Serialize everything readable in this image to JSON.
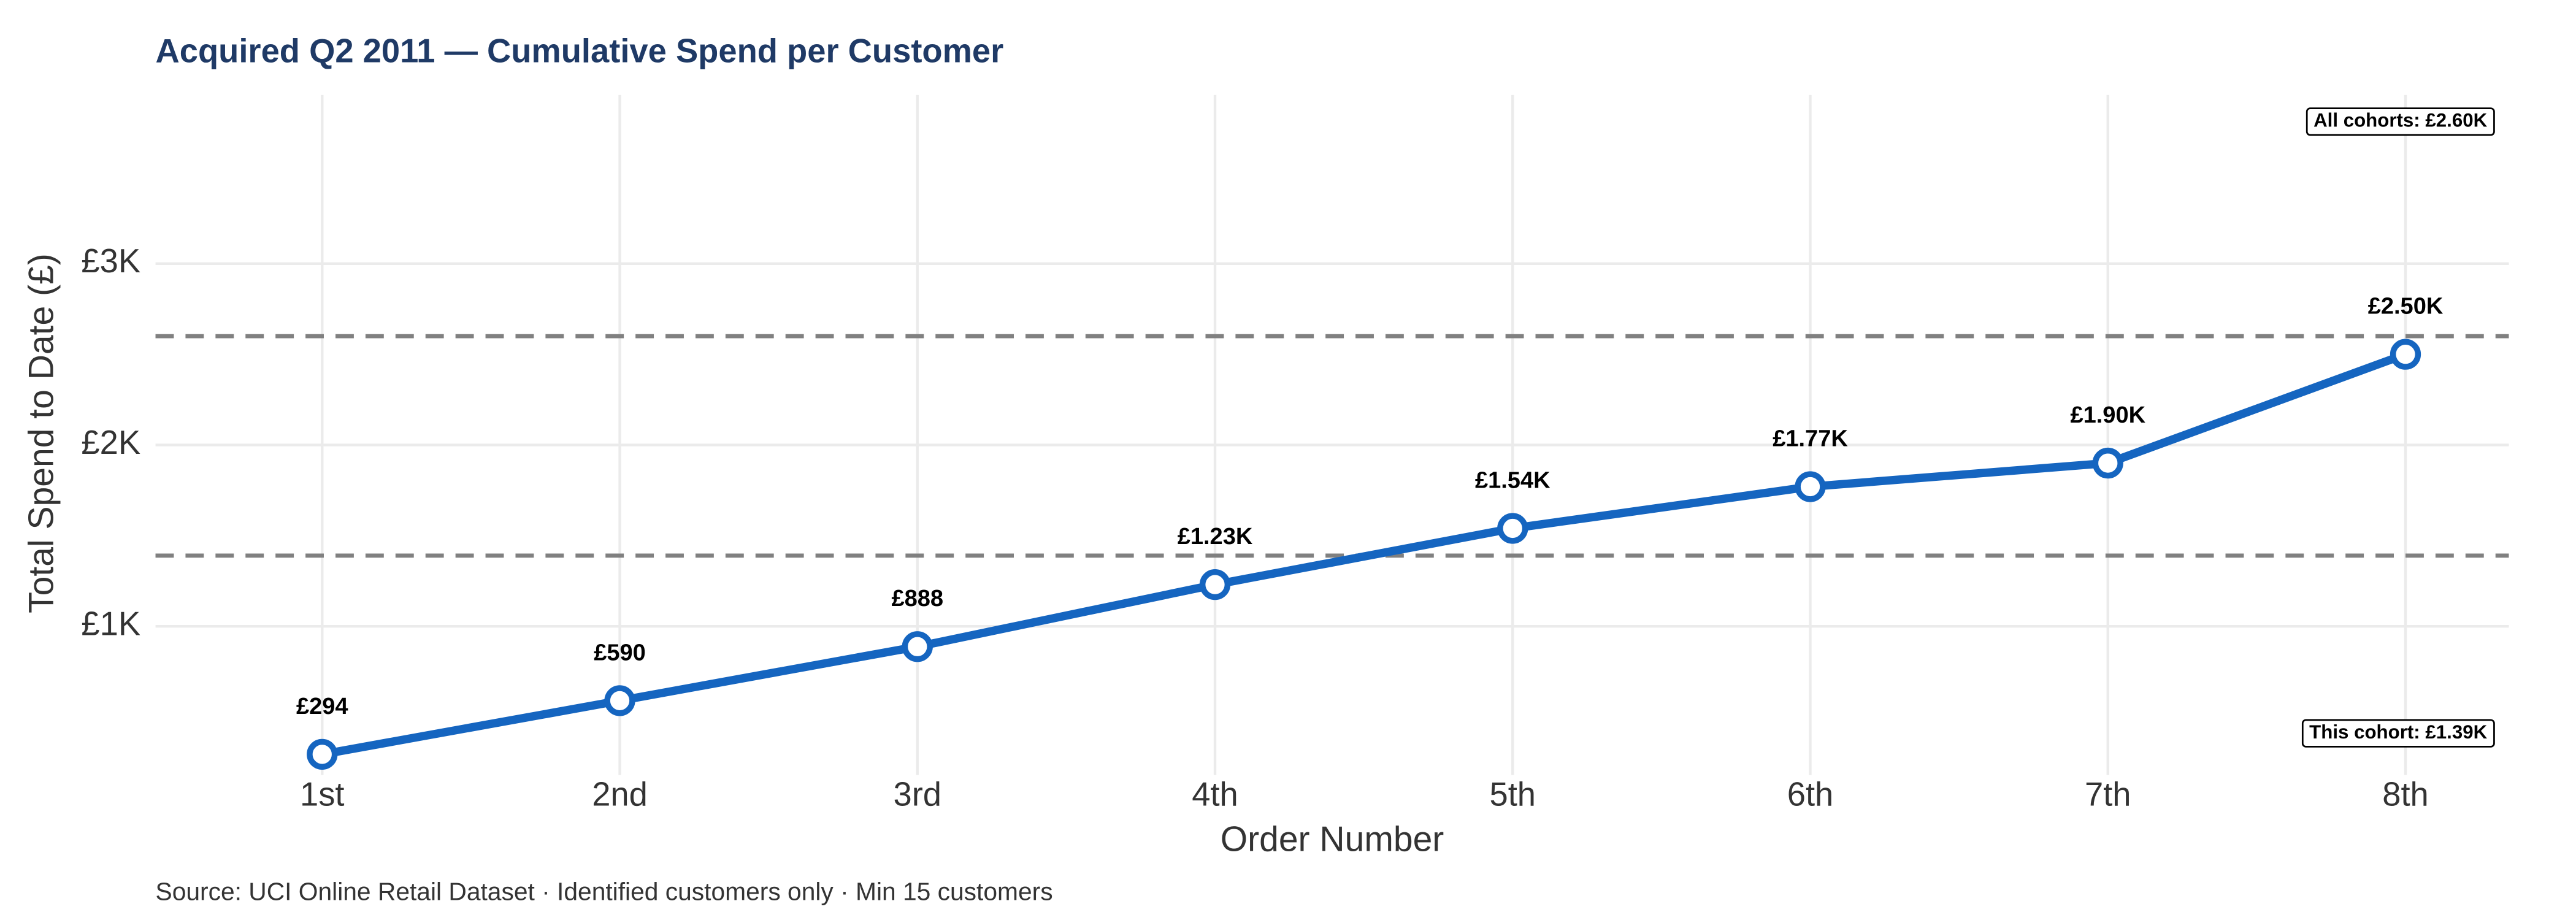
{
  "chart_data": {
    "type": "line",
    "title": "Acquired Q2 2011 — Cumulative Spend per Customer",
    "x_label": "Order Number",
    "y_label": "Total Spend to Date (£)",
    "caption": "Source: UCI Online Retail Dataset · Identified customers only · Min 15 customers",
    "categories": [
      "1st",
      "2nd",
      "3rd",
      "4th",
      "5th",
      "6th",
      "7th",
      "8th"
    ],
    "series": [
      {
        "color": "#1565c0",
        "values": [
          294,
          590,
          888,
          1230,
          1540,
          1770,
          1900,
          2500
        ],
        "value_labels": [
          "£294",
          "£590",
          "£888",
          "£1.23K",
          "£1.54K",
          "£1.77K",
          "£1.90K",
          "£2.50K"
        ]
      }
    ],
    "reference_lines": [
      {
        "value": 2600,
        "label": "All cohorts: £2.60K"
      },
      {
        "value": 1390,
        "label": "This cohort: £1.39K"
      }
    ],
    "ylim": [
      180,
      3930
    ],
    "yticks": [
      {
        "value": 1000,
        "label": "£1K"
      },
      {
        "value": 2000,
        "label": "£2K"
      },
      {
        "value": 3000,
        "label": "£3K"
      }
    ],
    "grid": true
  }
}
